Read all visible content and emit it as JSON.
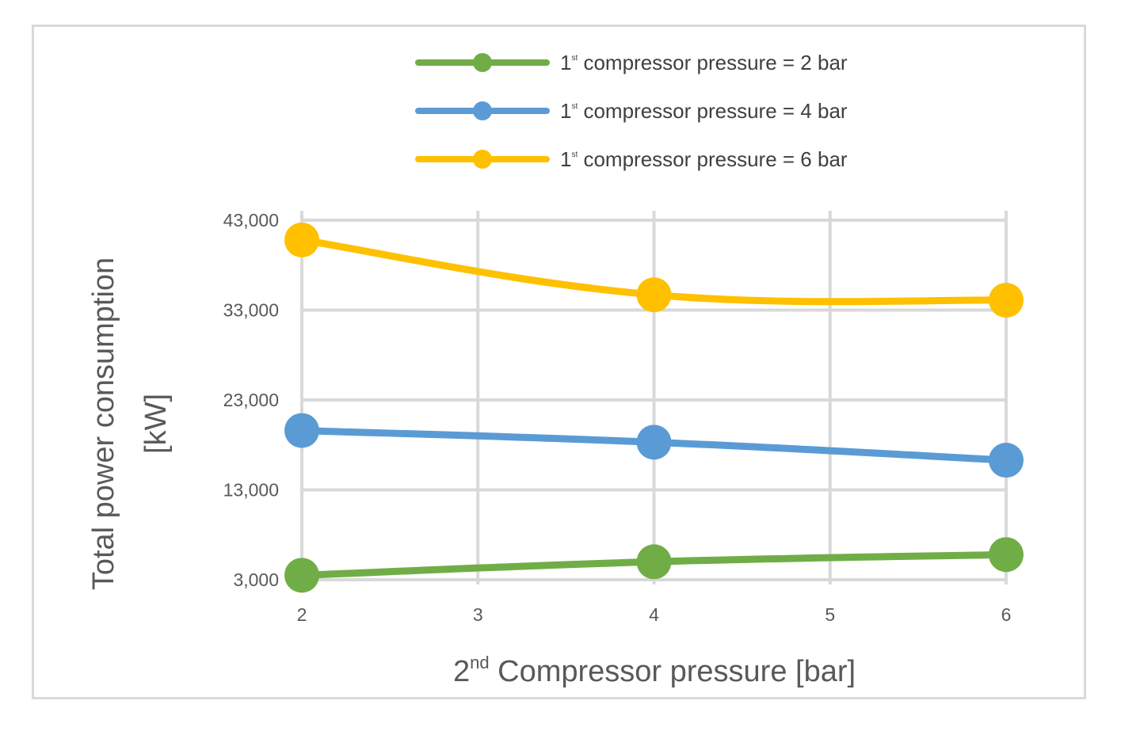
{
  "chart_data": {
    "type": "line",
    "x": [
      2,
      4,
      6
    ],
    "x_ticks": [
      "2",
      "3",
      "4",
      "5",
      "6"
    ],
    "y_ticks": [
      "3,000",
      "13,000",
      "23,000",
      "33,000",
      "43,000"
    ],
    "xlim": [
      2,
      6
    ],
    "ylim": [
      3000,
      43000
    ],
    "xlabel_main": "2",
    "xlabel_sup": "nd",
    "xlabel_rest": " Compressor pressure [bar]",
    "ylabel_line1": "Total power consumption",
    "ylabel_line2": "[kW]",
    "grid": true,
    "legend_position": "top",
    "series": [
      {
        "name": "compressor pressure = 2 bar",
        "legend_num": "1",
        "legend_sup": "st",
        "color": "#70ad47",
        "values": [
          3500,
          5000,
          5800
        ]
      },
      {
        "name": "compressor pressure = 4 bar",
        "legend_num": "1",
        "legend_sup": "st",
        "color": "#5b9bd5",
        "values": [
          19600,
          18300,
          16300
        ]
      },
      {
        "name": "compressor pressure = 6 bar",
        "legend_num": "1",
        "legend_sup": "st",
        "color": "#ffc000",
        "values": [
          40800,
          34700,
          34100
        ]
      }
    ]
  }
}
